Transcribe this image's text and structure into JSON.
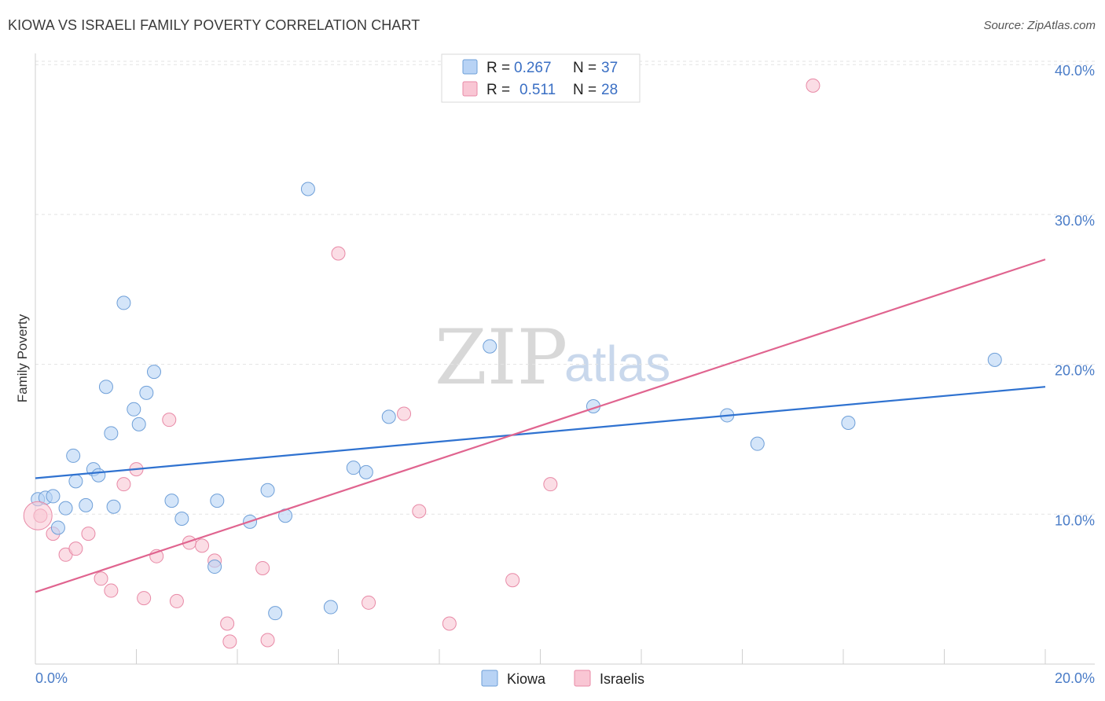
{
  "header": {
    "title": "KIOWA VS ISRAELI FAMILY POVERTY CORRELATION CHART",
    "source": "Source: ZipAtlas.com"
  },
  "watermark": {
    "zip": "ZIP",
    "atlas": "atlas"
  },
  "legend": {
    "rows": [
      {
        "r_label": "R =",
        "r_value": "0.267",
        "n_label": "N =",
        "n_value": "37",
        "color": "#b8d3f5",
        "border": "#6e9fd8"
      },
      {
        "r_label": "R =",
        "r_value": "0.511",
        "n_label": "N =",
        "n_value": "28",
        "color": "#f9c6d4",
        "border": "#e889a6"
      }
    ]
  },
  "bottom_legend": {
    "kiowa": "Kiowa",
    "israelis": "Israelis"
  },
  "chart_data": {
    "type": "scatter",
    "title": "KIOWA VS ISRAELI FAMILY POVERTY CORRELATION CHART",
    "xlabel": "",
    "ylabel": "Family Poverty",
    "xlim": [
      0,
      20
    ],
    "ylim": [
      0,
      41
    ],
    "x_tick_labels": [
      "0.0%",
      "20.0%"
    ],
    "y_ticks": [
      10,
      20,
      30,
      40
    ],
    "y_tick_labels": [
      "10.0%",
      "20.0%",
      "30.0%",
      "40.0%"
    ],
    "grid": true,
    "legend_position": "top-center",
    "series": [
      {
        "name": "Kiowa",
        "color": "#b8d3f5",
        "stroke": "#6e9fd8",
        "line_color": "#2f72d0",
        "trend": {
          "x": [
            0,
            20
          ],
          "y": [
            12.4,
            18.5
          ]
        },
        "points": [
          [
            0.05,
            11.0
          ],
          [
            0.2,
            11.1
          ],
          [
            0.35,
            11.2
          ],
          [
            0.45,
            9.1
          ],
          [
            0.6,
            10.4
          ],
          [
            0.75,
            13.9
          ],
          [
            0.8,
            12.2
          ],
          [
            1.0,
            10.6
          ],
          [
            1.15,
            13.0
          ],
          [
            1.25,
            12.6
          ],
          [
            1.4,
            18.5
          ],
          [
            1.5,
            15.4
          ],
          [
            1.55,
            10.5
          ],
          [
            1.75,
            24.1
          ],
          [
            1.95,
            17.0
          ],
          [
            2.05,
            16.0
          ],
          [
            2.2,
            18.1
          ],
          [
            2.35,
            19.5
          ],
          [
            2.7,
            10.9
          ],
          [
            2.9,
            9.7
          ],
          [
            3.55,
            6.5
          ],
          [
            3.6,
            10.9
          ],
          [
            4.25,
            9.5
          ],
          [
            4.6,
            11.6
          ],
          [
            4.75,
            3.4
          ],
          [
            4.95,
            9.9
          ],
          [
            5.4,
            31.7
          ],
          [
            5.85,
            3.8
          ],
          [
            6.3,
            13.1
          ],
          [
            6.55,
            12.8
          ],
          [
            7.0,
            16.5
          ],
          [
            9.0,
            21.2
          ],
          [
            11.05,
            17.2
          ],
          [
            13.7,
            16.6
          ],
          [
            14.3,
            14.7
          ],
          [
            16.1,
            16.1
          ],
          [
            19.0,
            20.3
          ]
        ]
      },
      {
        "name": "Israelis",
        "color": "#f9c6d4",
        "stroke": "#e889a6",
        "line_color": "#e0648f",
        "trend": {
          "x": [
            0,
            20
          ],
          "y": [
            4.8,
            27.0
          ]
        },
        "points": [
          [
            0.1,
            9.9
          ],
          [
            0.35,
            8.7
          ],
          [
            0.6,
            7.3
          ],
          [
            0.8,
            7.7
          ],
          [
            1.05,
            8.7
          ],
          [
            1.3,
            5.7
          ],
          [
            1.5,
            4.9
          ],
          [
            1.75,
            12.0
          ],
          [
            2.0,
            13.0
          ],
          [
            2.15,
            4.4
          ],
          [
            2.4,
            7.2
          ],
          [
            2.65,
            16.3
          ],
          [
            2.8,
            4.2
          ],
          [
            3.05,
            8.1
          ],
          [
            3.3,
            7.9
          ],
          [
            3.55,
            6.9
          ],
          [
            3.8,
            2.7
          ],
          [
            3.85,
            1.5
          ],
          [
            4.5,
            6.4
          ],
          [
            4.6,
            1.6
          ],
          [
            6.0,
            27.4
          ],
          [
            6.6,
            4.1
          ],
          [
            7.3,
            16.7
          ],
          [
            7.6,
            10.2
          ],
          [
            8.2,
            2.7
          ],
          [
            9.45,
            5.6
          ],
          [
            10.2,
            12.0
          ],
          [
            15.4,
            38.6
          ]
        ]
      }
    ]
  }
}
